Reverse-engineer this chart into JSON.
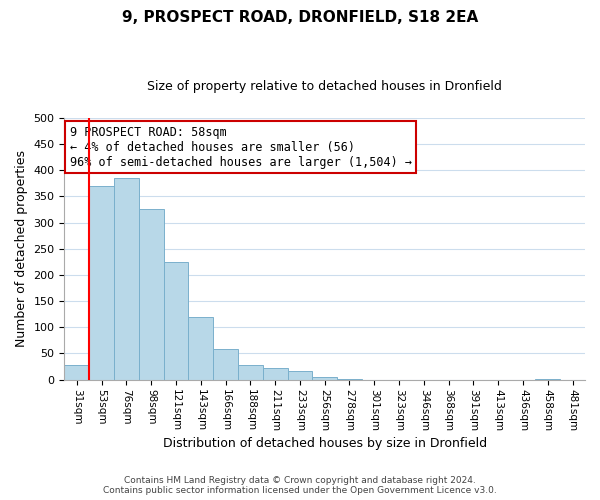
{
  "title": "9, PROSPECT ROAD, DRONFIELD, S18 2EA",
  "subtitle": "Size of property relative to detached houses in Dronfield",
  "xlabel": "Distribution of detached houses by size in Dronfield",
  "ylabel": "Number of detached properties",
  "bar_labels": [
    "31sqm",
    "53sqm",
    "76sqm",
    "98sqm",
    "121sqm",
    "143sqm",
    "166sqm",
    "188sqm",
    "211sqm",
    "233sqm",
    "256sqm",
    "278sqm",
    "301sqm",
    "323sqm",
    "346sqm",
    "368sqm",
    "391sqm",
    "413sqm",
    "436sqm",
    "458sqm",
    "481sqm"
  ],
  "bar_values": [
    28,
    370,
    385,
    325,
    225,
    120,
    58,
    28,
    22,
    17,
    5,
    2,
    0,
    0,
    0,
    0,
    0,
    0,
    0,
    2,
    0
  ],
  "bar_color": "#b8d8e8",
  "bar_edge_color": "#7ab0cc",
  "ylim": [
    0,
    500
  ],
  "yticks": [
    0,
    50,
    100,
    150,
    200,
    250,
    300,
    350,
    400,
    450,
    500
  ],
  "red_line_x": 1.5,
  "annotation_text": "9 PROSPECT ROAD: 58sqm\n← 4% of detached houses are smaller (56)\n96% of semi-detached houses are larger (1,504) →",
  "annotation_box_color": "#ffffff",
  "annotation_box_edge": "#cc0000",
  "footnote1": "Contains HM Land Registry data © Crown copyright and database right 2024.",
  "footnote2": "Contains public sector information licensed under the Open Government Licence v3.0.",
  "background_color": "#ffffff",
  "grid_color": "#ccdded"
}
